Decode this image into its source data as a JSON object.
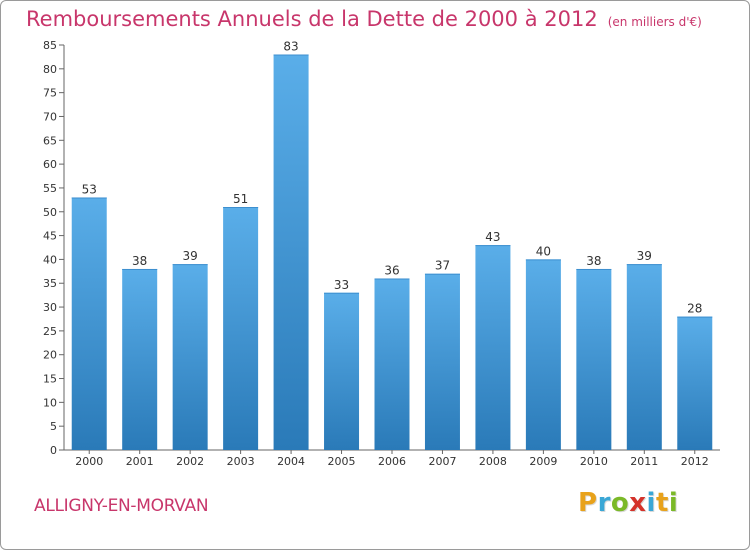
{
  "header": {
    "title": "Remboursements Annuels de la Dette de 2000 à 2012",
    "unit_note": "(en milliers d'€)"
  },
  "footer": {
    "commune": "ALLIGNY-EN-MORVAN",
    "brand": [
      "P",
      "r",
      "o",
      "x",
      "i",
      "t",
      "i"
    ],
    "brand_colors": [
      "#e8a21b",
      "#3aa7d6",
      "#7bb928",
      "#d4332b",
      "#3aa7d6",
      "#e8a21b",
      "#7bb928"
    ]
  },
  "colors": {
    "title": "#c8366b",
    "bar_top": "#5aaee9",
    "bar_bottom": "#2a7ab8",
    "axis": "#666666"
  },
  "chart_data": {
    "type": "bar",
    "title": "Remboursements Annuels de la Dette de 2000 à 2012",
    "categories": [
      "2000",
      "2001",
      "2002",
      "2003",
      "2004",
      "2005",
      "2006",
      "2007",
      "2008",
      "2009",
      "2010",
      "2011",
      "2012"
    ],
    "values": [
      53,
      38,
      39,
      51,
      83,
      33,
      36,
      37,
      43,
      40,
      38,
      39,
      28
    ],
    "ylim": [
      0,
      85
    ],
    "yticks": [
      0,
      5,
      10,
      15,
      20,
      25,
      30,
      35,
      40,
      45,
      50,
      55,
      60,
      65,
      70,
      75,
      80,
      85
    ],
    "grid": false,
    "data_labels": true
  }
}
